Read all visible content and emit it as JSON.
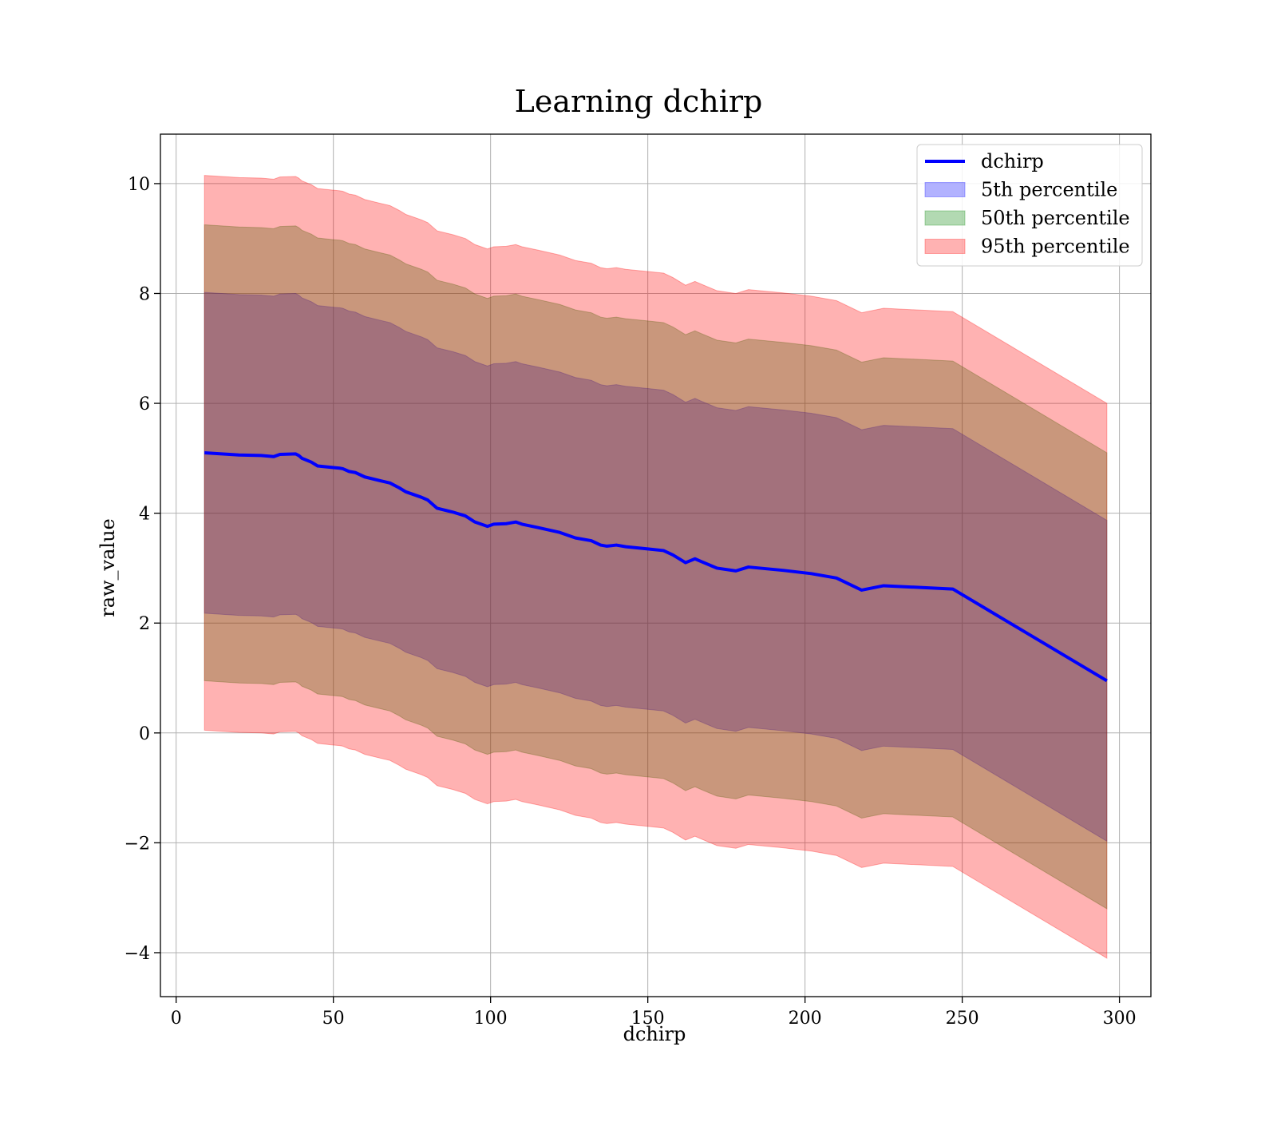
{
  "chart_data": {
    "type": "line",
    "title": "Learning dchirp",
    "xlabel": "dchirp",
    "ylabel": "raw_value",
    "xlim": [
      -5,
      310
    ],
    "ylim": [
      -4.8,
      10.9
    ],
    "xticks": [
      0,
      50,
      100,
      150,
      200,
      250,
      300
    ],
    "yticks": [
      -4,
      -2,
      0,
      2,
      4,
      6,
      8,
      10
    ],
    "xtick_labels": [
      "0",
      "50",
      "100",
      "150",
      "200",
      "250",
      "300"
    ],
    "ytick_labels": [
      "−4",
      "−2",
      "0",
      "2",
      "4",
      "6",
      "8",
      "10"
    ],
    "grid": true,
    "legend_position": "top-right",
    "legend": [
      {
        "label": "dchirp",
        "kind": "line",
        "color": "#0000ff"
      },
      {
        "label": "5th percentile",
        "kind": "patch",
        "color": "#0000ff"
      },
      {
        "label": "50th percentile",
        "kind": "patch",
        "color": "#008000"
      },
      {
        "label": "95th percentile",
        "kind": "patch",
        "color": "#ff0000"
      }
    ],
    "x": [
      9,
      20,
      27,
      31,
      33,
      38,
      39,
      40,
      43,
      45,
      50,
      52,
      53,
      55,
      57,
      60,
      65,
      68,
      71,
      73,
      78,
      80,
      83,
      88,
      92,
      95,
      99,
      101,
      105,
      108,
      110,
      115,
      122,
      127,
      132,
      135,
      137,
      140,
      143,
      150,
      155,
      158,
      162,
      165,
      167,
      172,
      178,
      182,
      193,
      202,
      210,
      218,
      225,
      247,
      296
    ],
    "median": [
      5.1,
      5.06,
      5.05,
      5.03,
      5.07,
      5.08,
      5.05,
      5.0,
      4.93,
      4.86,
      4.83,
      4.82,
      4.81,
      4.76,
      4.74,
      4.66,
      4.59,
      4.55,
      4.46,
      4.39,
      4.29,
      4.24,
      4.09,
      4.02,
      3.95,
      3.84,
      3.76,
      3.8,
      3.81,
      3.84,
      3.8,
      3.74,
      3.65,
      3.55,
      3.5,
      3.42,
      3.4,
      3.42,
      3.39,
      3.35,
      3.32,
      3.24,
      3.1,
      3.17,
      3.12,
      3.0,
      2.95,
      3.02,
      2.96,
      2.9,
      2.82,
      2.6,
      2.68,
      2.62,
      0.95
    ],
    "bands": [
      {
        "name": "5th percentile",
        "color": "#0000ff",
        "opacity": 0.3,
        "lower": [
          2.18,
          2.14,
          2.13,
          2.11,
          2.15,
          2.16,
          2.13,
          2.08,
          2.01,
          1.94,
          1.91,
          1.9,
          1.89,
          1.84,
          1.82,
          1.74,
          1.67,
          1.63,
          1.54,
          1.47,
          1.37,
          1.32,
          1.17,
          1.1,
          1.03,
          0.92,
          0.84,
          0.88,
          0.89,
          0.92,
          0.88,
          0.82,
          0.73,
          0.63,
          0.58,
          0.5,
          0.48,
          0.5,
          0.47,
          0.43,
          0.4,
          0.32,
          0.18,
          0.25,
          0.2,
          0.08,
          0.03,
          0.1,
          0.04,
          -0.02,
          -0.1,
          -0.32,
          -0.24,
          -0.3,
          -1.97
        ],
        "upper": [
          8.02,
          7.98,
          7.97,
          7.95,
          7.99,
          8.0,
          7.97,
          7.92,
          7.85,
          7.78,
          7.75,
          7.74,
          7.73,
          7.68,
          7.66,
          7.58,
          7.51,
          7.47,
          7.38,
          7.31,
          7.21,
          7.16,
          7.01,
          6.94,
          6.87,
          6.76,
          6.68,
          6.72,
          6.73,
          6.76,
          6.72,
          6.66,
          6.57,
          6.47,
          6.42,
          6.34,
          6.32,
          6.34,
          6.31,
          6.27,
          6.24,
          6.16,
          6.02,
          6.09,
          6.04,
          5.92,
          5.87,
          5.94,
          5.88,
          5.82,
          5.74,
          5.52,
          5.6,
          5.54,
          3.87
        ]
      },
      {
        "name": "50th percentile",
        "color": "#008000",
        "opacity": 0.3,
        "lower": [
          0.95,
          0.91,
          0.9,
          0.88,
          0.92,
          0.93,
          0.9,
          0.85,
          0.78,
          0.71,
          0.68,
          0.67,
          0.66,
          0.61,
          0.59,
          0.51,
          0.44,
          0.4,
          0.31,
          0.24,
          0.14,
          0.09,
          -0.06,
          -0.13,
          -0.2,
          -0.31,
          -0.39,
          -0.35,
          -0.34,
          -0.31,
          -0.35,
          -0.41,
          -0.5,
          -0.6,
          -0.65,
          -0.73,
          -0.75,
          -0.73,
          -0.76,
          -0.8,
          -0.83,
          -0.91,
          -1.05,
          -0.98,
          -1.03,
          -1.15,
          -1.2,
          -1.13,
          -1.19,
          -1.25,
          -1.33,
          -1.55,
          -1.47,
          -1.53,
          -3.2
        ],
        "upper": [
          9.25,
          9.21,
          9.2,
          9.18,
          9.22,
          9.23,
          9.2,
          9.15,
          9.08,
          9.01,
          8.98,
          8.97,
          8.96,
          8.91,
          8.89,
          8.81,
          8.74,
          8.7,
          8.61,
          8.54,
          8.44,
          8.39,
          8.24,
          8.17,
          8.1,
          7.99,
          7.91,
          7.95,
          7.96,
          7.99,
          7.95,
          7.89,
          7.8,
          7.7,
          7.65,
          7.57,
          7.55,
          7.57,
          7.54,
          7.5,
          7.47,
          7.39,
          7.25,
          7.32,
          7.27,
          7.15,
          7.1,
          7.17,
          7.11,
          7.05,
          6.97,
          6.75,
          6.83,
          6.77,
          5.1
        ]
      },
      {
        "name": "95th percentile",
        "color": "#ff0000",
        "opacity": 0.3,
        "lower": [
          0.05,
          0.01,
          0.0,
          -0.02,
          0.02,
          0.03,
          0.0,
          -0.05,
          -0.12,
          -0.19,
          -0.22,
          -0.23,
          -0.24,
          -0.29,
          -0.31,
          -0.39,
          -0.46,
          -0.5,
          -0.59,
          -0.66,
          -0.76,
          -0.81,
          -0.96,
          -1.03,
          -1.1,
          -1.21,
          -1.29,
          -1.25,
          -1.24,
          -1.21,
          -1.25,
          -1.31,
          -1.4,
          -1.5,
          -1.55,
          -1.63,
          -1.65,
          -1.63,
          -1.66,
          -1.7,
          -1.73,
          -1.81,
          -1.95,
          -1.88,
          -1.93,
          -2.05,
          -2.1,
          -2.03,
          -2.09,
          -2.15,
          -2.23,
          -2.45,
          -2.37,
          -2.43,
          -4.1
        ],
        "upper": [
          10.15,
          10.11,
          10.1,
          10.08,
          10.12,
          10.13,
          10.1,
          10.05,
          9.98,
          9.91,
          9.88,
          9.87,
          9.86,
          9.81,
          9.79,
          9.71,
          9.64,
          9.6,
          9.51,
          9.44,
          9.34,
          9.29,
          9.14,
          9.07,
          9.0,
          8.89,
          8.81,
          8.85,
          8.86,
          8.89,
          8.85,
          8.79,
          8.7,
          8.6,
          8.55,
          8.47,
          8.45,
          8.47,
          8.44,
          8.4,
          8.37,
          8.29,
          8.15,
          8.22,
          8.17,
          8.05,
          8.0,
          8.07,
          8.01,
          7.95,
          7.87,
          7.65,
          7.73,
          7.67,
          6.0
        ]
      }
    ],
    "line_series": {
      "name": "dchirp",
      "color": "#0000ff"
    }
  }
}
